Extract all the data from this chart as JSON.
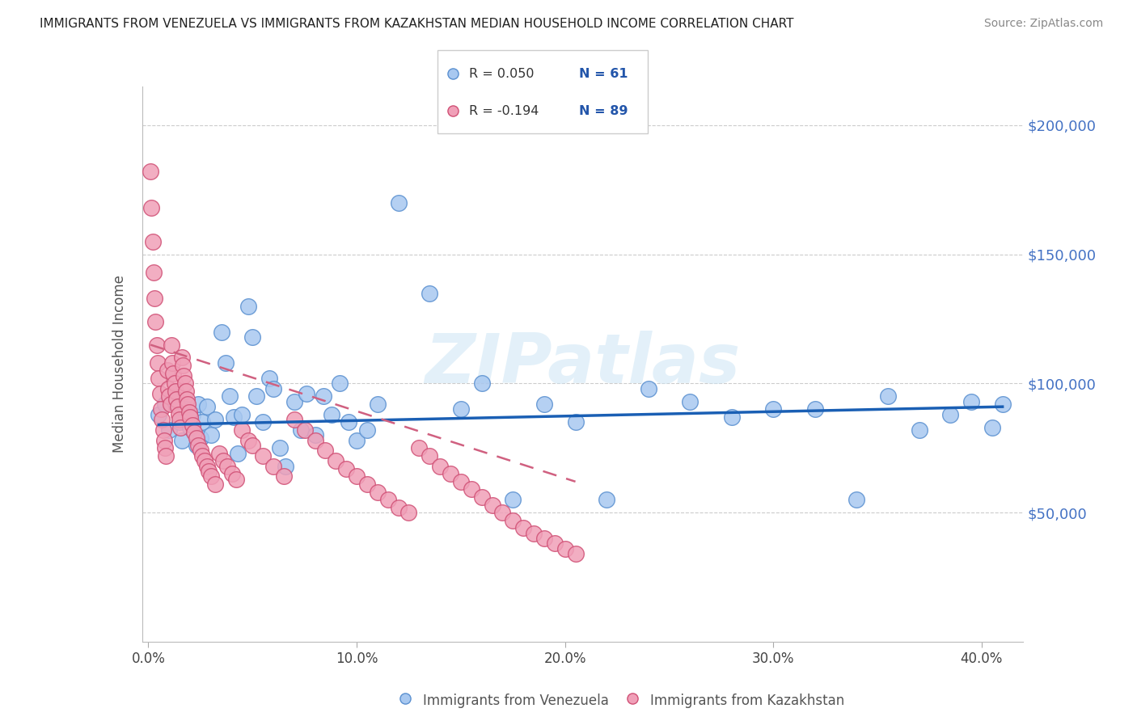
{
  "title": "IMMIGRANTS FROM VENEZUELA VS IMMIGRANTS FROM KAZAKHSTAN MEDIAN HOUSEHOLD INCOME CORRELATION CHART",
  "source": "Source: ZipAtlas.com",
  "ylabel": "Median Household Income",
  "ytick_labels": [
    "$50,000",
    "$100,000",
    "$150,000",
    "$200,000"
  ],
  "ytick_vals": [
    50000,
    100000,
    150000,
    200000
  ],
  "xtick_labels": [
    "0.0%",
    "10.0%",
    "20.0%",
    "30.0%",
    "40.0%"
  ],
  "xtick_vals": [
    0.0,
    10.0,
    20.0,
    30.0,
    40.0
  ],
  "ylim": [
    0,
    215000
  ],
  "xlim": [
    -0.3,
    42
  ],
  "venezuela_color": "#a8c8f0",
  "venezuela_edge": "#5a90d0",
  "kazakhstan_color": "#f0a0b8",
  "kazakhstan_edge": "#d05075",
  "trend_venezuela_color": "#1a5fb4",
  "trend_kazakhstan_color": "#d06080",
  "legend_venezuela_R": "R = 0.050",
  "legend_venezuela_N": "N = 61",
  "legend_kazakhstan_R": "R = -0.194",
  "legend_kazakhstan_N": "N = 89",
  "watermark": "ZIPatlas",
  "venezuela_x": [
    0.5,
    0.8,
    1.0,
    1.2,
    1.5,
    1.6,
    1.8,
    2.0,
    2.1,
    2.3,
    2.4,
    2.5,
    2.6,
    2.8,
    3.0,
    3.2,
    3.5,
    3.7,
    3.9,
    4.1,
    4.3,
    4.5,
    4.8,
    5.0,
    5.2,
    5.5,
    5.8,
    6.0,
    6.3,
    6.6,
    7.0,
    7.3,
    7.6,
    8.0,
    8.4,
    8.8,
    9.2,
    9.6,
    10.0,
    10.5,
    11.0,
    12.0,
    13.5,
    15.0,
    16.0,
    17.5,
    19.0,
    20.5,
    22.0,
    24.0,
    26.0,
    28.0,
    30.0,
    32.0,
    34.0,
    35.5,
    37.0,
    38.5,
    39.5,
    40.5,
    41.0
  ],
  "venezuela_y": [
    88000,
    92000,
    82000,
    95000,
    85000,
    78000,
    90000,
    83000,
    88000,
    76000,
    92000,
    79000,
    85000,
    91000,
    80000,
    86000,
    120000,
    108000,
    95000,
    87000,
    73000,
    88000,
    130000,
    118000,
    95000,
    85000,
    102000,
    98000,
    75000,
    68000,
    93000,
    82000,
    96000,
    80000,
    95000,
    88000,
    100000,
    85000,
    78000,
    82000,
    92000,
    170000,
    135000,
    90000,
    100000,
    55000,
    92000,
    85000,
    55000,
    98000,
    93000,
    87000,
    90000,
    90000,
    55000,
    95000,
    82000,
    88000,
    93000,
    83000,
    92000
  ],
  "kazakhstan_x": [
    0.1,
    0.15,
    0.2,
    0.25,
    0.3,
    0.35,
    0.4,
    0.45,
    0.5,
    0.55,
    0.6,
    0.65,
    0.7,
    0.75,
    0.8,
    0.85,
    0.9,
    0.95,
    1.0,
    1.05,
    1.1,
    1.15,
    1.2,
    1.25,
    1.3,
    1.35,
    1.4,
    1.45,
    1.5,
    1.55,
    1.6,
    1.65,
    1.7,
    1.75,
    1.8,
    1.85,
    1.9,
    1.95,
    2.0,
    2.1,
    2.2,
    2.3,
    2.4,
    2.5,
    2.6,
    2.7,
    2.8,
    2.9,
    3.0,
    3.2,
    3.4,
    3.6,
    3.8,
    4.0,
    4.2,
    4.5,
    4.8,
    5.0,
    5.5,
    6.0,
    6.5,
    7.0,
    7.5,
    8.0,
    8.5,
    9.0,
    9.5,
    10.0,
    10.5,
    11.0,
    11.5,
    12.0,
    12.5,
    13.0,
    13.5,
    14.0,
    14.5,
    15.0,
    15.5,
    16.0,
    16.5,
    17.0,
    17.5,
    18.0,
    18.5,
    19.0,
    19.5,
    20.0,
    20.5
  ],
  "kazakhstan_y": [
    182000,
    168000,
    155000,
    143000,
    133000,
    124000,
    115000,
    108000,
    102000,
    96000,
    90000,
    86000,
    82000,
    78000,
    75000,
    72000,
    105000,
    98000,
    95000,
    92000,
    115000,
    108000,
    104000,
    100000,
    97000,
    94000,
    91000,
    88000,
    86000,
    83000,
    110000,
    107000,
    103000,
    100000,
    97000,
    94000,
    92000,
    89000,
    87000,
    84000,
    81000,
    79000,
    76000,
    74000,
    72000,
    70000,
    68000,
    66000,
    64000,
    61000,
    73000,
    70000,
    68000,
    65000,
    63000,
    82000,
    78000,
    76000,
    72000,
    68000,
    64000,
    86000,
    82000,
    78000,
    74000,
    70000,
    67000,
    64000,
    61000,
    58000,
    55000,
    52000,
    50000,
    75000,
    72000,
    68000,
    65000,
    62000,
    59000,
    56000,
    53000,
    50000,
    47000,
    44000,
    42000,
    40000,
    38000,
    36000,
    34000
  ],
  "vz_trend_x": [
    0.5,
    41.0
  ],
  "vz_trend_y": [
    84000,
    91000
  ],
  "kz_trend_x": [
    0.1,
    20.5
  ],
  "kz_trend_y": [
    115000,
    62000
  ]
}
